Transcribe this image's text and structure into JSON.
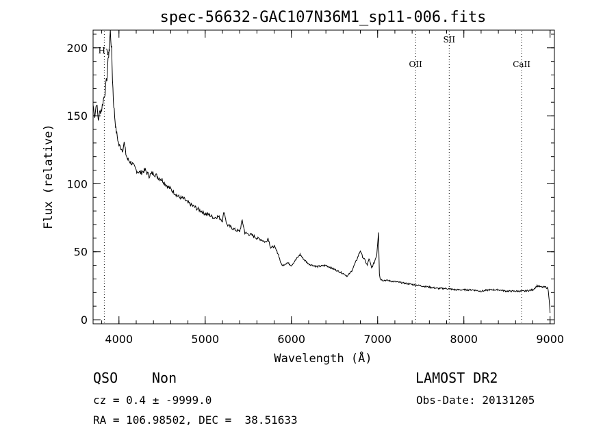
{
  "chart_data": {
    "type": "line",
    "title": "spec-56632-GAC107N36M1_sp11-006.fits",
    "xlabel": "Wavelength (Å)",
    "ylabel": "Flux (relative)",
    "xlim": [
      3700,
      9050
    ],
    "ylim": [
      -3,
      213
    ],
    "x_ticks": [
      4000,
      5000,
      6000,
      7000,
      8000,
      9000
    ],
    "y_ticks": [
      0,
      50,
      100,
      150,
      200
    ],
    "grid": false,
    "series": [
      {
        "x": [
          3700,
          3720,
          3740,
          3760,
          3780,
          3800,
          3820,
          3840,
          3860,
          3880,
          3900,
          3915,
          3925,
          3935,
          3950,
          3965,
          3980,
          4000,
          4020,
          4040,
          4060,
          4080,
          4100,
          4150,
          4200,
          4250,
          4300,
          4350,
          4400,
          4450,
          4500,
          4550,
          4600,
          4650,
          4700,
          4750,
          4800,
          4850,
          4900,
          4950,
          5000,
          5050,
          5100,
          5150,
          5200,
          5220,
          5250,
          5300,
          5350,
          5400,
          5430,
          5460,
          5500,
          5550,
          5600,
          5650,
          5700,
          5730,
          5760,
          5800,
          5850,
          5880,
          5900,
          5950,
          6000,
          6050,
          6100,
          6150,
          6200,
          6250,
          6300,
          6400,
          6500,
          6600,
          6650,
          6700,
          6750,
          6800,
          6820,
          6850,
          6880,
          6900,
          6930,
          6960,
          6990,
          7010,
          7020,
          7030,
          7060,
          7100,
          7200,
          7300,
          7400,
          7500,
          7600,
          7700,
          7800,
          7900,
          8000,
          8100,
          8200,
          8300,
          8400,
          8500,
          8600,
          8700,
          8800,
          8850,
          8900,
          8950,
          8975,
          8990,
          9000
        ],
        "y": [
          158,
          150,
          160,
          147,
          153,
          155,
          162,
          168,
          178,
          195,
          212,
          198,
          178,
          162,
          150,
          140,
          135,
          128,
          127,
          125,
          130,
          122,
          118,
          115,
          110,
          108,
          110,
          106,
          108,
          105,
          103,
          99,
          96,
          93,
          90,
          89,
          86,
          84,
          82,
          80,
          78,
          77,
          75,
          76,
          73,
          80,
          70,
          68,
          66,
          65,
          73,
          64,
          63,
          62,
          60,
          59,
          57,
          60,
          53,
          54,
          48,
          41,
          40,
          42,
          40,
          44,
          48,
          44,
          41,
          40,
          39,
          40,
          37,
          34,
          32,
          36,
          43,
          51,
          47,
          44,
          40,
          45,
          38,
          42,
          48,
          65,
          34,
          30,
          29,
          29,
          28,
          27,
          26,
          25,
          24,
          23,
          23,
          22,
          22,
          22,
          21,
          22,
          22,
          21,
          21,
          21,
          22,
          25,
          24,
          24,
          23,
          15,
          5
        ]
      }
    ],
    "line_markers": [
      {
        "name": "Hγ",
        "x": 3830
      },
      {
        "name": "OII",
        "x": 7440
      },
      {
        "name": "SII",
        "x": 7830
      },
      {
        "name": "CaII",
        "x": 8670
      }
    ]
  },
  "info": {
    "object_class": "QSO",
    "subclass": "Non",
    "survey": "LAMOST DR2",
    "cz": "cz = 0.4 ± -9999.0",
    "obs_date": "Obs-Date: 20131205",
    "coords": "RA = 106.98502, DEC =  38.51633"
  }
}
